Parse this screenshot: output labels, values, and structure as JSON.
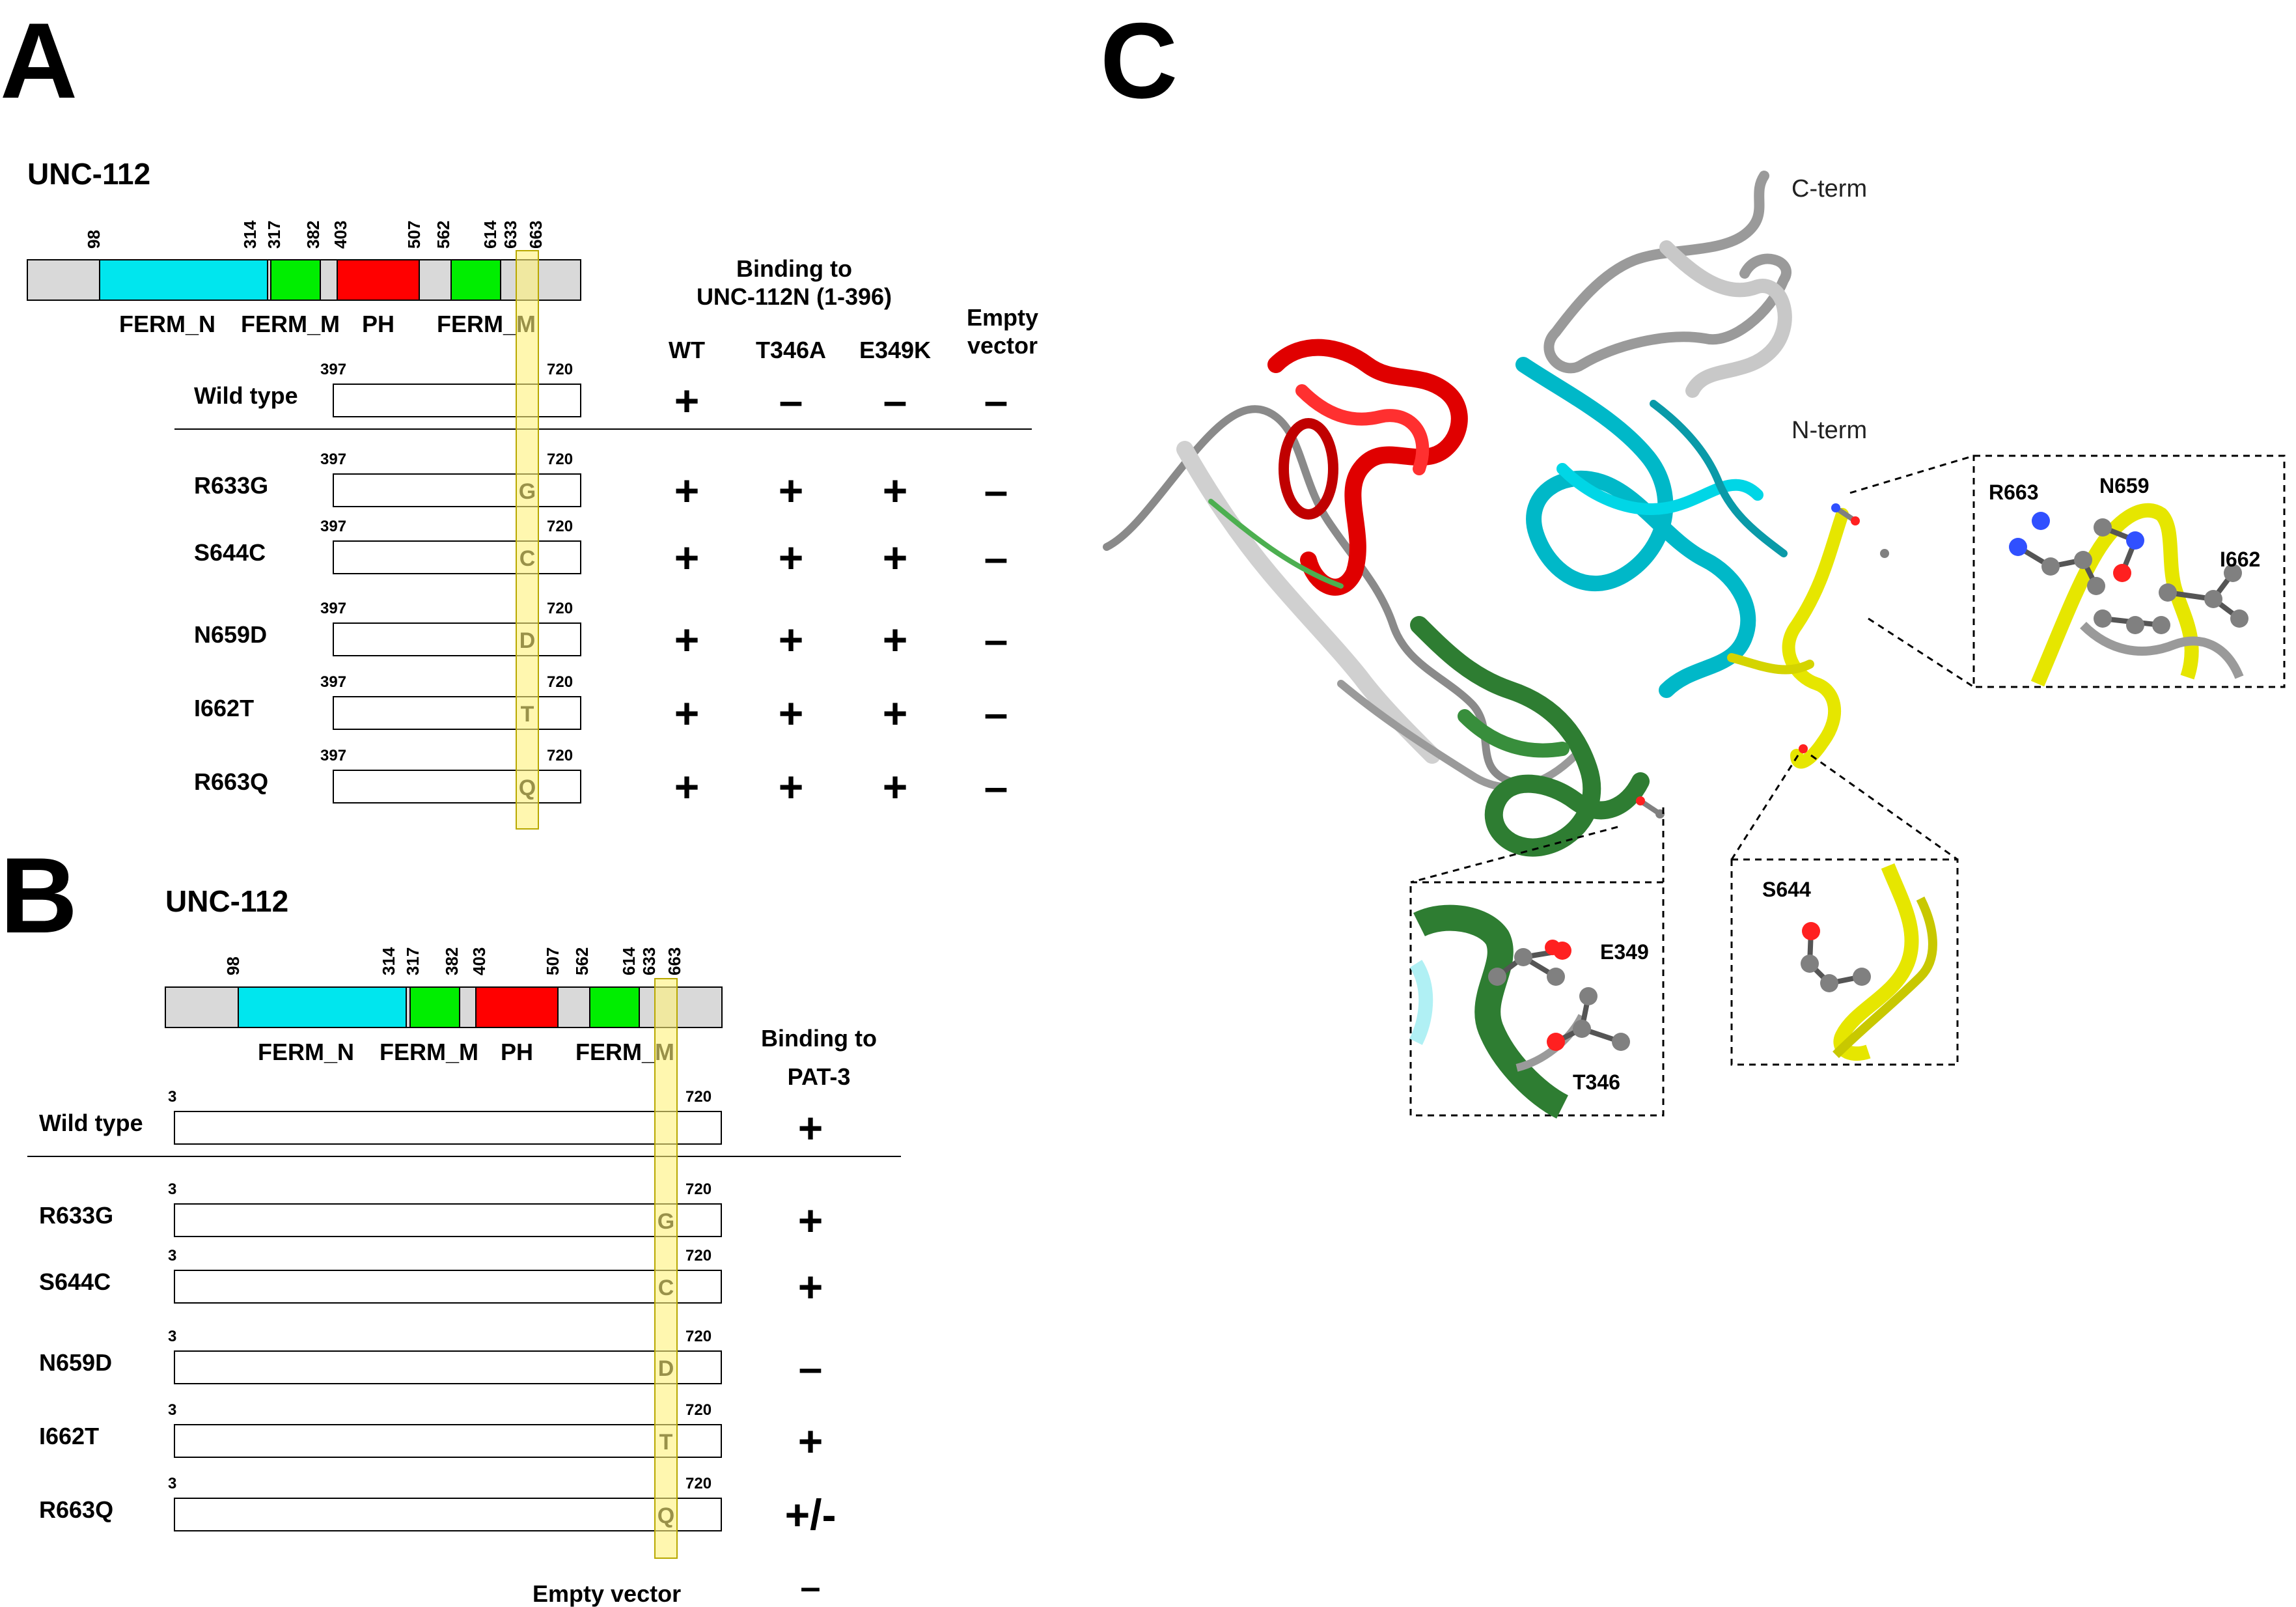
{
  "colors": {
    "terminal_gray": "#d9d9d9",
    "ferm_n": "#00e6ee",
    "ferm_m": "#00ee00",
    "ph": "#ff0000",
    "highlight": "#fff27a",
    "dark_green": "#2e7d32",
    "yellow_ribbon": "#e6e600"
  },
  "panel_a": {
    "label": "A",
    "protein": "UNC-112",
    "domain_positions": [
      "98",
      "314",
      "317",
      "382",
      "403",
      "507",
      "562",
      "614",
      "633",
      "663"
    ],
    "domains": [
      {
        "name": "FERM_N",
        "color": "#00e6ee"
      },
      {
        "name": "FERM_M",
        "color": "#00ee00"
      },
      {
        "name": "PH",
        "color": "#ff0000"
      },
      {
        "name": "FERM_M",
        "color": "#00ee00"
      }
    ],
    "construct_start": "397",
    "construct_end": "720",
    "binding_header": "Binding to UNC-112N (1-396)",
    "binding_header_line1": "Binding to",
    "binding_header_line2": "UNC-112N (1-396)",
    "empty_vector_header_line1": "Empty",
    "empty_vector_header_line2": "vector",
    "columns": [
      "WT",
      "T346A",
      "E349K"
    ],
    "rows": [
      {
        "label": "Wild type",
        "mutation": "",
        "results": [
          "+",
          "–",
          "–",
          "–"
        ]
      },
      {
        "label": "R633G",
        "mutation": "G",
        "results": [
          "+",
          "+",
          "+",
          "–"
        ]
      },
      {
        "label": "S644C",
        "mutation": "C",
        "results": [
          "+",
          "+",
          "+",
          "–"
        ]
      },
      {
        "label": "N659D",
        "mutation": "D",
        "results": [
          "+",
          "+",
          "+",
          "–"
        ]
      },
      {
        "label": "I662T",
        "mutation": "T",
        "results": [
          "+",
          "+",
          "+",
          "–"
        ]
      },
      {
        "label": "R663Q",
        "mutation": "Q",
        "results": [
          "+",
          "+",
          "+",
          "–"
        ]
      }
    ]
  },
  "panel_b": {
    "label": "B",
    "protein": "UNC-112",
    "domain_positions": [
      "98",
      "314",
      "317",
      "382",
      "403",
      "507",
      "562",
      "614",
      "633",
      "663"
    ],
    "domains": [
      {
        "name": "FERM_N",
        "color": "#00e6ee"
      },
      {
        "name": "FERM_M",
        "color": "#00ee00"
      },
      {
        "name": "PH",
        "color": "#ff0000"
      },
      {
        "name": "FERM_M",
        "color": "#00ee00"
      }
    ],
    "construct_start": "3",
    "construct_end": "720",
    "binding_header_line1": "Binding to",
    "binding_header_line2": "PAT-3",
    "rows": [
      {
        "label": "Wild type",
        "mutation": "",
        "result": "+"
      },
      {
        "label": "R633G",
        "mutation": "G",
        "result": "+"
      },
      {
        "label": "S644C",
        "mutation": "C",
        "result": "+"
      },
      {
        "label": "N659D",
        "mutation": "D",
        "result": "–"
      },
      {
        "label": "I662T",
        "mutation": "T",
        "result": "+"
      },
      {
        "label": "R663Q",
        "mutation": "Q",
        "result": "+/-"
      }
    ],
    "empty_vector_label": "Empty vector",
    "empty_vector_result": "–"
  },
  "panel_c": {
    "label": "C",
    "c_term": "C-term",
    "n_term": "N-term",
    "inset_top_right": {
      "labels": [
        "R663",
        "N659",
        "I662"
      ]
    },
    "inset_bottom_middle": {
      "labels": [
        "E349",
        "T346"
      ]
    },
    "inset_bottom_right": {
      "labels": [
        "S644"
      ]
    }
  }
}
